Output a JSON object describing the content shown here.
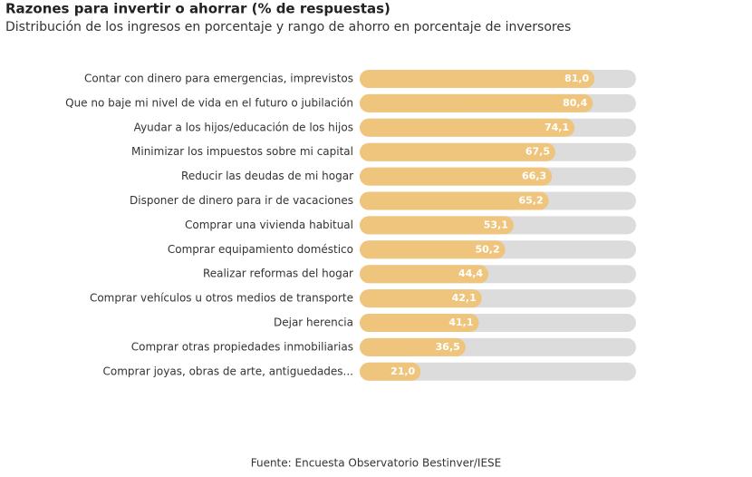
{
  "chart_data": {
    "type": "bar",
    "orientation": "horizontal",
    "title": "Razones para invertir o ahorrar (% de respuestas)",
    "subtitle": "Distribución de los ingresos en porcentaje y rango de ahorro en porcentaje de inversores",
    "source": "Fuente: Encuesta Observatorio Bestinver/IESE",
    "categories": [
      "Contar con dinero para emergencias, imprevistos",
      "Que no baje mi nivel de vida en el futuro o jubilación",
      "Ayudar a los hijos/educación de los hijos",
      "Minimizar los impuestos sobre mi capital",
      "Reducir las deudas de mi hogar",
      "Disponer de dinero para ir de vacaciones",
      "Comprar una vivienda habitual",
      "Comprar equipamiento doméstico",
      "Realizar reformas del hogar",
      "Comprar vehículos u otros medios de transporte",
      "Dejar herencia",
      "Comprar otras propiedades inmobiliarias",
      "Comprar joyas, obras de arte, antiguedades..."
    ],
    "values": [
      81.0,
      80.4,
      74.1,
      67.5,
      66.3,
      65.2,
      53.1,
      50.2,
      44.4,
      42.1,
      41.1,
      36.5,
      21.0
    ],
    "value_labels": [
      "81,0",
      "80,4",
      "74,1",
      "67,5",
      "66,3",
      "65,2",
      "53,1",
      "50,2",
      "44,4",
      "42,1",
      "41,1",
      "36,5",
      "21,0"
    ],
    "color": "#efc47c"
  }
}
